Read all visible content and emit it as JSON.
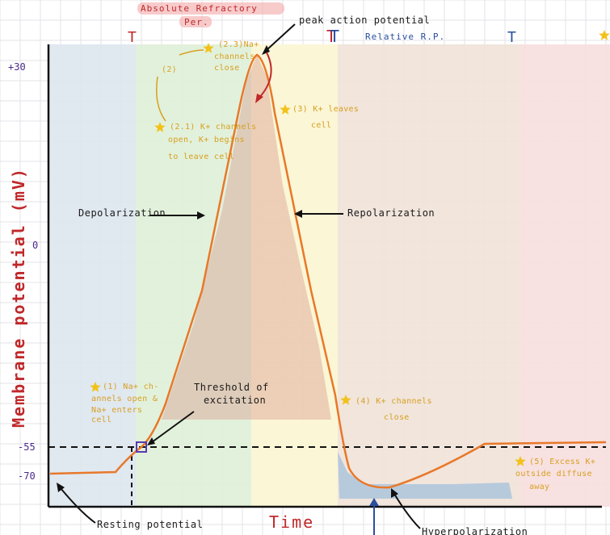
{
  "labels": {
    "absolute": "Absolute Refractory",
    "absolute2": "Per.",
    "relative": "Relative R.P.",
    "peak": "peak action potential",
    "y_axis": "Membrane potential (mV)",
    "x_axis": "Time",
    "depolarization": "Depolarization",
    "repolarization": "Repolarization",
    "threshold1": "Threshold of",
    "threshold2": "excitation",
    "resting": "Resting potential",
    "hyper": "Hyperpolarization"
  },
  "ticks": {
    "t30": "+30",
    "t0": "0",
    "t55": "-55",
    "t70": "-70"
  },
  "notes": {
    "n23a": "(2.3)Na+",
    "n23b": "channels",
    "n23c": "close",
    "n2": "(2)",
    "n21a": "(2.1) K+ channels",
    "n21b": "open, K+ begins",
    "n21c": "to leave cell",
    "n3a": "(3) K+ leaves",
    "n3b": "cell",
    "n1a": "(1) Na+ ch-",
    "n1b": "annels open &",
    "n1c": "Na+ enters",
    "n1d": "cell",
    "n4a": "(4) K+ channels",
    "n4b": "close",
    "n5a": "(5) Excess K+",
    "n5b": "outside diffuse",
    "n5c": "away"
  },
  "colors": {
    "curve": "#e8782a",
    "grid": "#e3e3e8",
    "axis": "#111111",
    "band_blue": "#dde6ee",
    "band_green": "#dfefd8",
    "band_yellow": "#fbf6d4",
    "band_brown": "#efe2d8",
    "band_pink": "#f7dede",
    "star": "#f2c21b"
  }
}
